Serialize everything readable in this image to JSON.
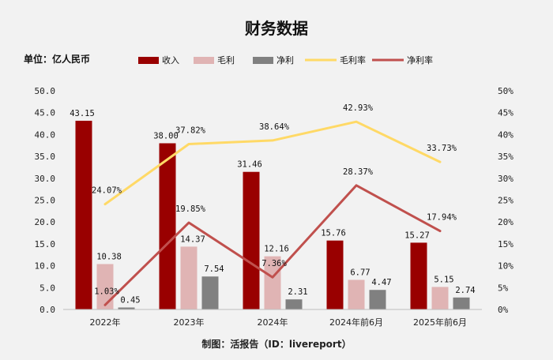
{
  "chart_data": {
    "type": "bar",
    "title": "财务数据",
    "unit_label": "单位：亿人民币",
    "footer": "制图：活报告（ID：livereport）",
    "categories": [
      "2022年",
      "2023年",
      "2024年",
      "2024年前6月",
      "2025年前6月"
    ],
    "series": [
      {
        "name": "收入",
        "kind": "bar",
        "axis": "left",
        "color": "#990000",
        "values": [
          43.15,
          38.0,
          31.46,
          15.76,
          15.27
        ],
        "labels": [
          "43.15",
          "38.00",
          "31.46",
          "15.76",
          "15.27"
        ]
      },
      {
        "name": "毛利",
        "kind": "bar",
        "axis": "left",
        "color": "#e0b4b4",
        "values": [
          10.38,
          14.37,
          12.16,
          6.77,
          5.15
        ],
        "labels": [
          "10.38",
          "14.37",
          "12.16",
          "6.77",
          "5.15"
        ]
      },
      {
        "name": "净利",
        "kind": "bar",
        "axis": "left",
        "color": "#808080",
        "values": [
          0.45,
          7.54,
          2.31,
          4.47,
          2.74
        ],
        "labels": [
          "0.45",
          "7.54",
          "2.31",
          "4.47",
          "2.74"
        ]
      },
      {
        "name": "毛利率",
        "kind": "line",
        "axis": "right",
        "color": "#ffd966",
        "values": [
          24.07,
          37.82,
          38.64,
          42.93,
          33.73
        ],
        "labels": [
          "24.07%",
          "37.82%",
          "38.64%",
          "42.93%",
          "33.73%"
        ]
      },
      {
        "name": "净利率",
        "kind": "line",
        "axis": "right",
        "color": "#c0504d",
        "values": [
          1.03,
          19.85,
          7.36,
          28.37,
          17.94
        ],
        "labels": [
          "1.03%",
          "19.85%",
          "7.36%",
          "28.37%",
          "17.94%"
        ]
      }
    ],
    "y_left": {
      "min": 0,
      "max": 50,
      "ticks": [
        "0.0",
        "5.0",
        "10.0",
        "15.0",
        "20.0",
        "25.0",
        "30.0",
        "35.0",
        "40.0",
        "45.0",
        "50.0"
      ]
    },
    "y_right": {
      "min": 0,
      "max": 50,
      "ticks": [
        "0%",
        "5%",
        "10%",
        "15%",
        "20%",
        "25%",
        "30%",
        "35%",
        "40%",
        "45%",
        "50%"
      ]
    },
    "legend_position": "top",
    "grid": false
  }
}
